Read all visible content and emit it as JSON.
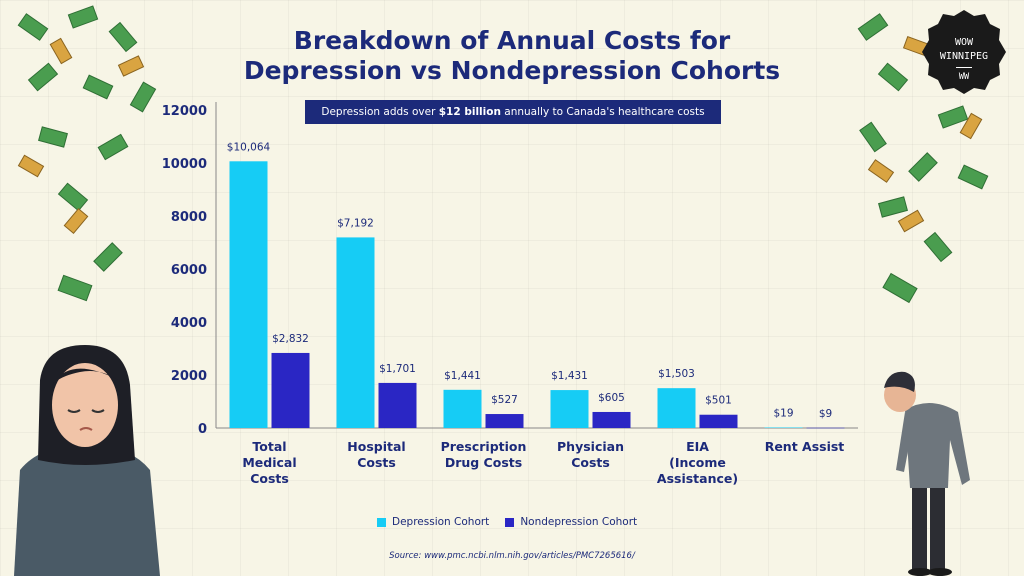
{
  "title_line1": "Breakdown of Annual Costs for",
  "title_line2": "Depression vs Nondepression Cohorts",
  "callout": {
    "prefix": "Depression adds over ",
    "highlight": "$12 billion",
    "suffix": " annually to Canada's healthcare costs"
  },
  "badge": {
    "line1": "WOW",
    "line2": "WINNIPEG",
    "line3": "WW"
  },
  "source": "Source: www.pmc.ncbi.nlm.nih.gov/articles/PMC7265616/",
  "colors": {
    "depression": "#16ccf5",
    "nondepression": "#2a26c4",
    "title": "#1c2a7a"
  },
  "chart_data": {
    "type": "bar",
    "title": "Breakdown of Annual Costs for Depression vs Nondepression Cohorts",
    "categories": [
      [
        "Total",
        "Medical",
        "Costs"
      ],
      [
        "Hospital",
        "Costs"
      ],
      [
        "Prescription",
        "Drug Costs"
      ],
      [
        "Physician",
        "Costs"
      ],
      [
        "EIA",
        "(Income",
        "Assistance)"
      ],
      [
        "Rent Assist"
      ]
    ],
    "series": [
      {
        "name": "Depression Cohort",
        "values": [
          10064,
          7192,
          1441,
          1431,
          1503,
          19
        ],
        "labels": [
          "$10,064",
          "$7,192",
          "$1,441",
          "$1,431",
          "$1,503",
          "$19"
        ]
      },
      {
        "name": "Nondepression Cohort",
        "values": [
          2832,
          1701,
          527,
          605,
          501,
          9
        ],
        "labels": [
          "$2,832",
          "$1,701",
          "$527",
          "$605",
          "$501",
          "$9"
        ]
      }
    ],
    "yticks": [
      0,
      2000,
      4000,
      6000,
      8000,
      10000,
      12000
    ],
    "ylim": [
      0,
      12000
    ],
    "xlabel": "",
    "ylabel": "",
    "legend": "bottom-center"
  }
}
